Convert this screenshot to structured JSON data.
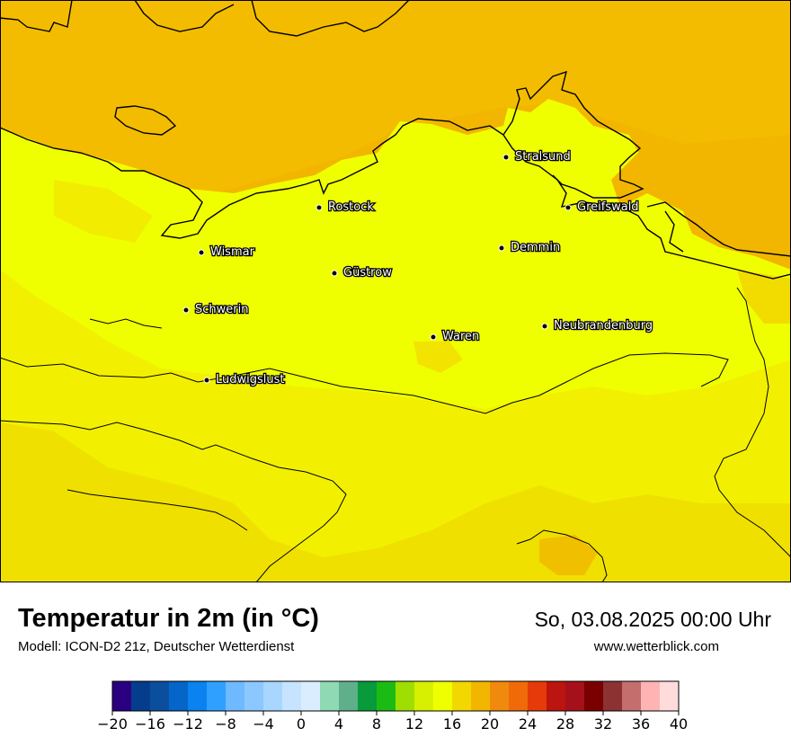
{
  "title": "Temperatur in 2m (in °C)",
  "subtitle": "Modell: ICON-D2 21z, Deutscher Wetterdienst",
  "datetime": "So, 03.08.2025 00:00 Uhr",
  "website": "www.wetterblick.com",
  "cities": [
    {
      "name": "Stralsund"
    },
    {
      "name": "Greifswald"
    },
    {
      "name": "Rostock"
    },
    {
      "name": "Wismar"
    },
    {
      "name": "Demmin"
    },
    {
      "name": "Güstrow"
    },
    {
      "name": "Schwerin"
    },
    {
      "name": "Neubrandenburg"
    },
    {
      "name": "Waren"
    },
    {
      "name": "Ludwigslust"
    }
  ],
  "colors": {
    "sea_warm": "#f2b600",
    "land_yellow": "#f0ff00",
    "land_warm": "#f2dc00",
    "land_orange": "#f0c800"
  },
  "colorbar": {
    "unit": "°C",
    "min": -20,
    "max": 40,
    "step": 2,
    "tick_labels": [
      "−20",
      "−16",
      "−12",
      "−8",
      "−4",
      "0",
      "4",
      "8",
      "12",
      "16",
      "20",
      "24",
      "28",
      "32",
      "36",
      "40"
    ],
    "colors": [
      "#2a0080",
      "#063c8c",
      "#0a4f9e",
      "#0565c8",
      "#0a82f0",
      "#2fa0ff",
      "#6eb9ff",
      "#8cc8ff",
      "#a8d6ff",
      "#c6e4ff",
      "#daedff",
      "#8fd9b4",
      "#5fb08a",
      "#089a3b",
      "#1cbb14",
      "#9ede00",
      "#d7ef00",
      "#f0ff00",
      "#f2d800",
      "#f2b600",
      "#f08a0c",
      "#f06a0a",
      "#e63a0a",
      "#bc140e",
      "#a6101a",
      "#7a0000",
      "#8c3232",
      "#c46e6e",
      "#ffb4b4",
      "#ffdcdc"
    ]
  }
}
